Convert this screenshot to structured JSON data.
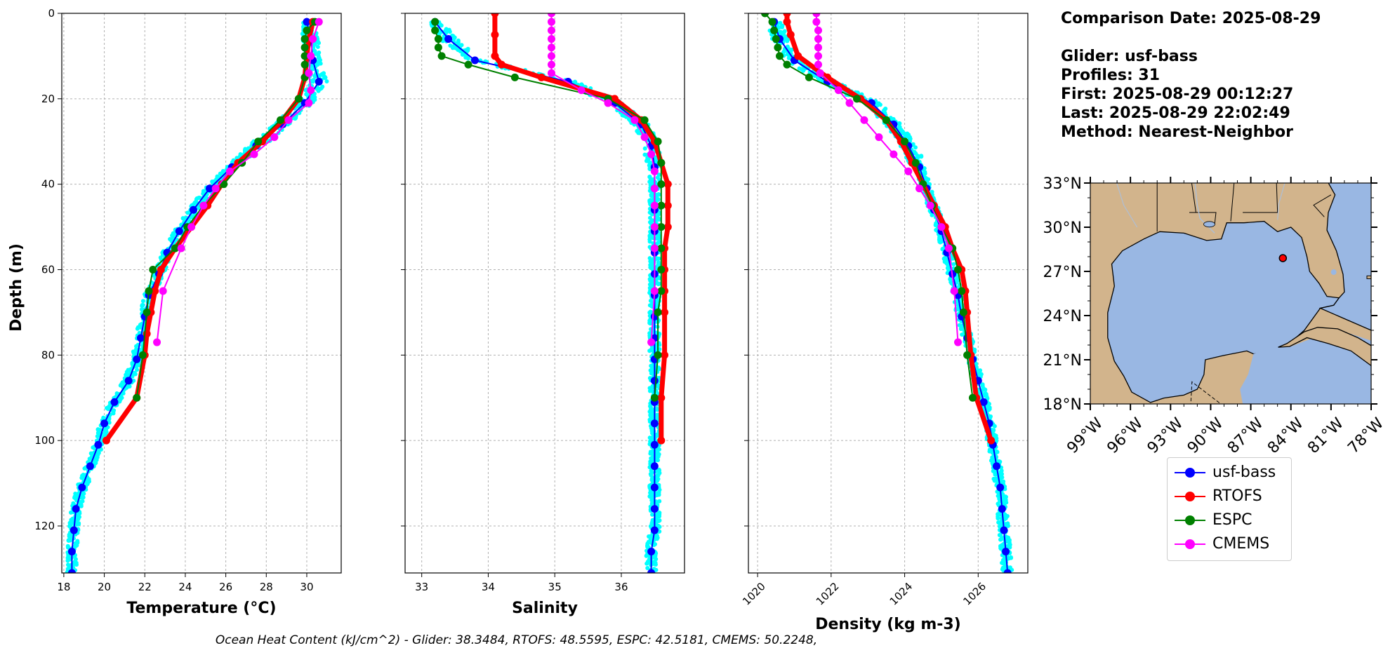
{
  "info": {
    "comparison_date": "Comparison Date: 2025-08-29",
    "glider": "Glider: usf-bass",
    "profiles": "Profiles: 31",
    "first": "First: 2025-08-29 00:12:27",
    "last": "Last: 2025-08-29 22:02:49",
    "method": "Method: Nearest-Neighbor"
  },
  "footer": "Ocean Heat Content (kJ/cm^2) - Glider: 38.3484,  RTOFS: 48.5595,  ESPC: 42.5181,  CMEMS: 50.2248,",
  "colors": {
    "usf-bass": "#0000ff",
    "RTOFS": "#ff0000",
    "ESPC": "#008000",
    "CMEMS": "#ff00ff",
    "raw_glider": "#00ffff",
    "land": "#d2b48c",
    "ocean": "#99b7e3"
  },
  "legend": [
    "usf-bass",
    "RTOFS",
    "ESPC",
    "CMEMS"
  ],
  "chart_data": [
    {
      "type": "line",
      "xlabel": "Temperature (°C)",
      "ylabel": "Depth (m)",
      "xlim": [
        17.9,
        31.7
      ],
      "ylim": [
        131,
        0
      ],
      "xticks": [
        18,
        20,
        22,
        24,
        26,
        28,
        30
      ],
      "yticks": [
        0,
        20,
        40,
        60,
        80,
        100,
        120
      ],
      "grid": true,
      "series": [
        {
          "name": "usf-bass",
          "depth": [
            2,
            6,
            11,
            16,
            21,
            26,
            31,
            36,
            41,
            46,
            51,
            56,
            61,
            66,
            71,
            76,
            81,
            86,
            91,
            96,
            101,
            106,
            111,
            116,
            121,
            126,
            131
          ],
          "values": [
            30.0,
            30.2,
            30.3,
            30.6,
            29.9,
            28.8,
            27.5,
            26.3,
            25.2,
            24.4,
            23.7,
            23.1,
            22.7,
            22.2,
            22.0,
            21.8,
            21.6,
            21.2,
            20.5,
            20.0,
            19.7,
            19.3,
            18.9,
            18.6,
            18.5,
            18.4,
            18.4
          ]
        },
        {
          "name": "RTOFS",
          "depth": [
            2,
            6,
            10,
            15,
            20,
            25,
            30,
            35,
            40,
            45,
            50,
            55,
            60,
            65,
            70,
            75,
            80,
            90,
            100
          ],
          "values": [
            30.3,
            30.1,
            30.0,
            29.9,
            29.6,
            28.8,
            27.8,
            26.6,
            25.8,
            25.1,
            24.3,
            23.5,
            22.8,
            22.5,
            22.3,
            22.1,
            22.0,
            21.6,
            20.1
          ]
        },
        {
          "name": "ESPC",
          "depth": [
            2,
            4,
            6,
            8,
            10,
            12,
            15,
            20,
            25,
            30,
            35,
            40,
            45,
            50,
            55,
            60,
            65,
            70,
            80,
            90
          ],
          "values": [
            30.4,
            30.0,
            29.9,
            29.9,
            29.9,
            29.9,
            29.9,
            29.6,
            28.7,
            27.6,
            26.8,
            25.9,
            24.9,
            24.1,
            23.5,
            22.4,
            22.2,
            22.1,
            21.9,
            21.6
          ]
        },
        {
          "name": "CMEMS",
          "depth": [
            2,
            6,
            10,
            14,
            18,
            21,
            25,
            29,
            33,
            37,
            41,
            45,
            50,
            55,
            65,
            77
          ],
          "values": [
            30.6,
            30.3,
            30.2,
            30.1,
            30.2,
            30.1,
            29.1,
            28.4,
            27.4,
            26.2,
            25.5,
            24.9,
            24.3,
            23.8,
            22.9,
            22.6
          ]
        }
      ]
    },
    {
      "type": "line",
      "xlabel": "Salinity",
      "xlim": [
        32.75,
        36.95
      ],
      "ylim": [
        131,
        0
      ],
      "xticks": [
        33,
        34,
        35,
        36
      ],
      "yticks": [
        0,
        20,
        40,
        60,
        80,
        100,
        120
      ],
      "grid": true,
      "series": [
        {
          "name": "usf-bass",
          "depth": [
            2,
            6,
            11,
            16,
            21,
            26,
            31,
            36,
            41,
            46,
            51,
            56,
            61,
            66,
            71,
            76,
            81,
            86,
            91,
            96,
            101,
            106,
            111,
            116,
            121,
            126,
            131
          ],
          "values": [
            33.2,
            33.4,
            33.8,
            35.2,
            35.9,
            36.3,
            36.45,
            36.5,
            36.5,
            36.5,
            36.5,
            36.5,
            36.5,
            36.5,
            36.5,
            36.5,
            36.5,
            36.5,
            36.5,
            36.5,
            36.5,
            36.5,
            36.5,
            36.5,
            36.5,
            36.45,
            36.45
          ]
        },
        {
          "name": "RTOFS",
          "depth": [
            0,
            5,
            10,
            12,
            15,
            20,
            25,
            30,
            35,
            40,
            45,
            50,
            55,
            60,
            65,
            70,
            80,
            90,
            100
          ],
          "values": [
            34.1,
            34.1,
            34.1,
            34.2,
            34.8,
            35.9,
            36.3,
            36.5,
            36.6,
            36.7,
            36.7,
            36.7,
            36.65,
            36.65,
            36.65,
            36.65,
            36.65,
            36.6,
            36.6
          ]
        },
        {
          "name": "ESPC",
          "depth": [
            2,
            4,
            6,
            8,
            10,
            12,
            15,
            20,
            25,
            30,
            35,
            40,
            45,
            50,
            55,
            60,
            65,
            70,
            80,
            90
          ],
          "values": [
            33.2,
            33.2,
            33.25,
            33.25,
            33.3,
            33.7,
            34.4,
            35.8,
            36.35,
            36.55,
            36.6,
            36.6,
            36.6,
            36.6,
            36.6,
            36.6,
            36.6,
            36.55,
            36.55,
            36.5
          ]
        },
        {
          "name": "CMEMS",
          "depth": [
            0,
            2,
            4,
            6,
            8,
            10,
            12,
            14,
            18,
            21,
            25,
            29,
            33,
            37,
            41,
            45,
            50,
            55,
            65,
            77
          ],
          "values": [
            34.95,
            34.95,
            34.95,
            34.95,
            34.95,
            34.95,
            34.95,
            34.95,
            35.4,
            35.8,
            36.2,
            36.35,
            36.45,
            36.5,
            36.5,
            36.5,
            36.5,
            36.5,
            36.5,
            36.45
          ]
        }
      ]
    },
    {
      "type": "line",
      "xlabel": "Density (kg m-3)",
      "xlim": [
        1019.75,
        1027.35
      ],
      "ylim": [
        131,
        0
      ],
      "xticks": [
        1020,
        1022,
        1024,
        1026
      ],
      "yticks": [
        0,
        20,
        40,
        60,
        80,
        100,
        120
      ],
      "grid": true,
      "series": [
        {
          "name": "usf-bass",
          "depth": [
            2,
            6,
            11,
            16,
            21,
            26,
            31,
            36,
            41,
            46,
            51,
            56,
            61,
            66,
            71,
            76,
            81,
            86,
            91,
            96,
            101,
            106,
            111,
            116,
            121,
            126,
            131
          ],
          "values": [
            1020.45,
            1020.6,
            1021.0,
            1021.9,
            1023.1,
            1023.7,
            1024.1,
            1024.4,
            1024.6,
            1024.8,
            1025.0,
            1025.15,
            1025.3,
            1025.45,
            1025.55,
            1025.7,
            1025.85,
            1026.0,
            1026.15,
            1026.3,
            1026.4,
            1026.5,
            1026.6,
            1026.65,
            1026.7,
            1026.75,
            1026.8
          ]
        },
        {
          "name": "RTOFS",
          "depth": [
            0,
            2,
            5,
            10,
            15,
            20,
            25,
            30,
            35,
            40,
            45,
            50,
            55,
            60,
            65,
            70,
            80,
            90,
            100
          ],
          "values": [
            1020.8,
            1020.8,
            1020.9,
            1021.1,
            1021.9,
            1022.8,
            1023.5,
            1023.9,
            1024.2,
            1024.5,
            1024.8,
            1025.1,
            1025.3,
            1025.55,
            1025.65,
            1025.7,
            1025.8,
            1025.95,
            1026.35
          ]
        },
        {
          "name": "ESPC",
          "depth": [
            0,
            2,
            4,
            6,
            8,
            10,
            12,
            15,
            20,
            25,
            30,
            35,
            40,
            45,
            50,
            55,
            60,
            65,
            70,
            80,
            90
          ],
          "values": [
            1020.2,
            1020.4,
            1020.45,
            1020.5,
            1020.55,
            1020.6,
            1020.8,
            1021.4,
            1022.7,
            1023.5,
            1024.0,
            1024.3,
            1024.5,
            1024.75,
            1025.0,
            1025.3,
            1025.45,
            1025.55,
            1025.6,
            1025.7,
            1025.85
          ]
        },
        {
          "name": "CMEMS",
          "depth": [
            0,
            2,
            4,
            6,
            8,
            10,
            12,
            14,
            18,
            21,
            25,
            29,
            33,
            37,
            41,
            45,
            50,
            55,
            65,
            77
          ],
          "values": [
            1021.6,
            1021.6,
            1021.65,
            1021.65,
            1021.65,
            1021.65,
            1021.65,
            1021.7,
            1022.2,
            1022.5,
            1022.9,
            1023.3,
            1023.7,
            1024.1,
            1024.4,
            1024.7,
            1025.0,
            1025.2,
            1025.35,
            1025.45
          ]
        }
      ]
    },
    {
      "type": "map",
      "lon_range": [
        -99,
        -78
      ],
      "lat_range": [
        18,
        33
      ],
      "xticks": [
        "99°W",
        "96°W",
        "93°W",
        "90°W",
        "87°W",
        "84°W",
        "81°W",
        "78°W"
      ],
      "yticks": [
        "33°N",
        "30°N",
        "27°N",
        "24°N",
        "21°N",
        "18°N"
      ],
      "marker": {
        "lon": -84.6,
        "lat": 27.9
      }
    }
  ]
}
